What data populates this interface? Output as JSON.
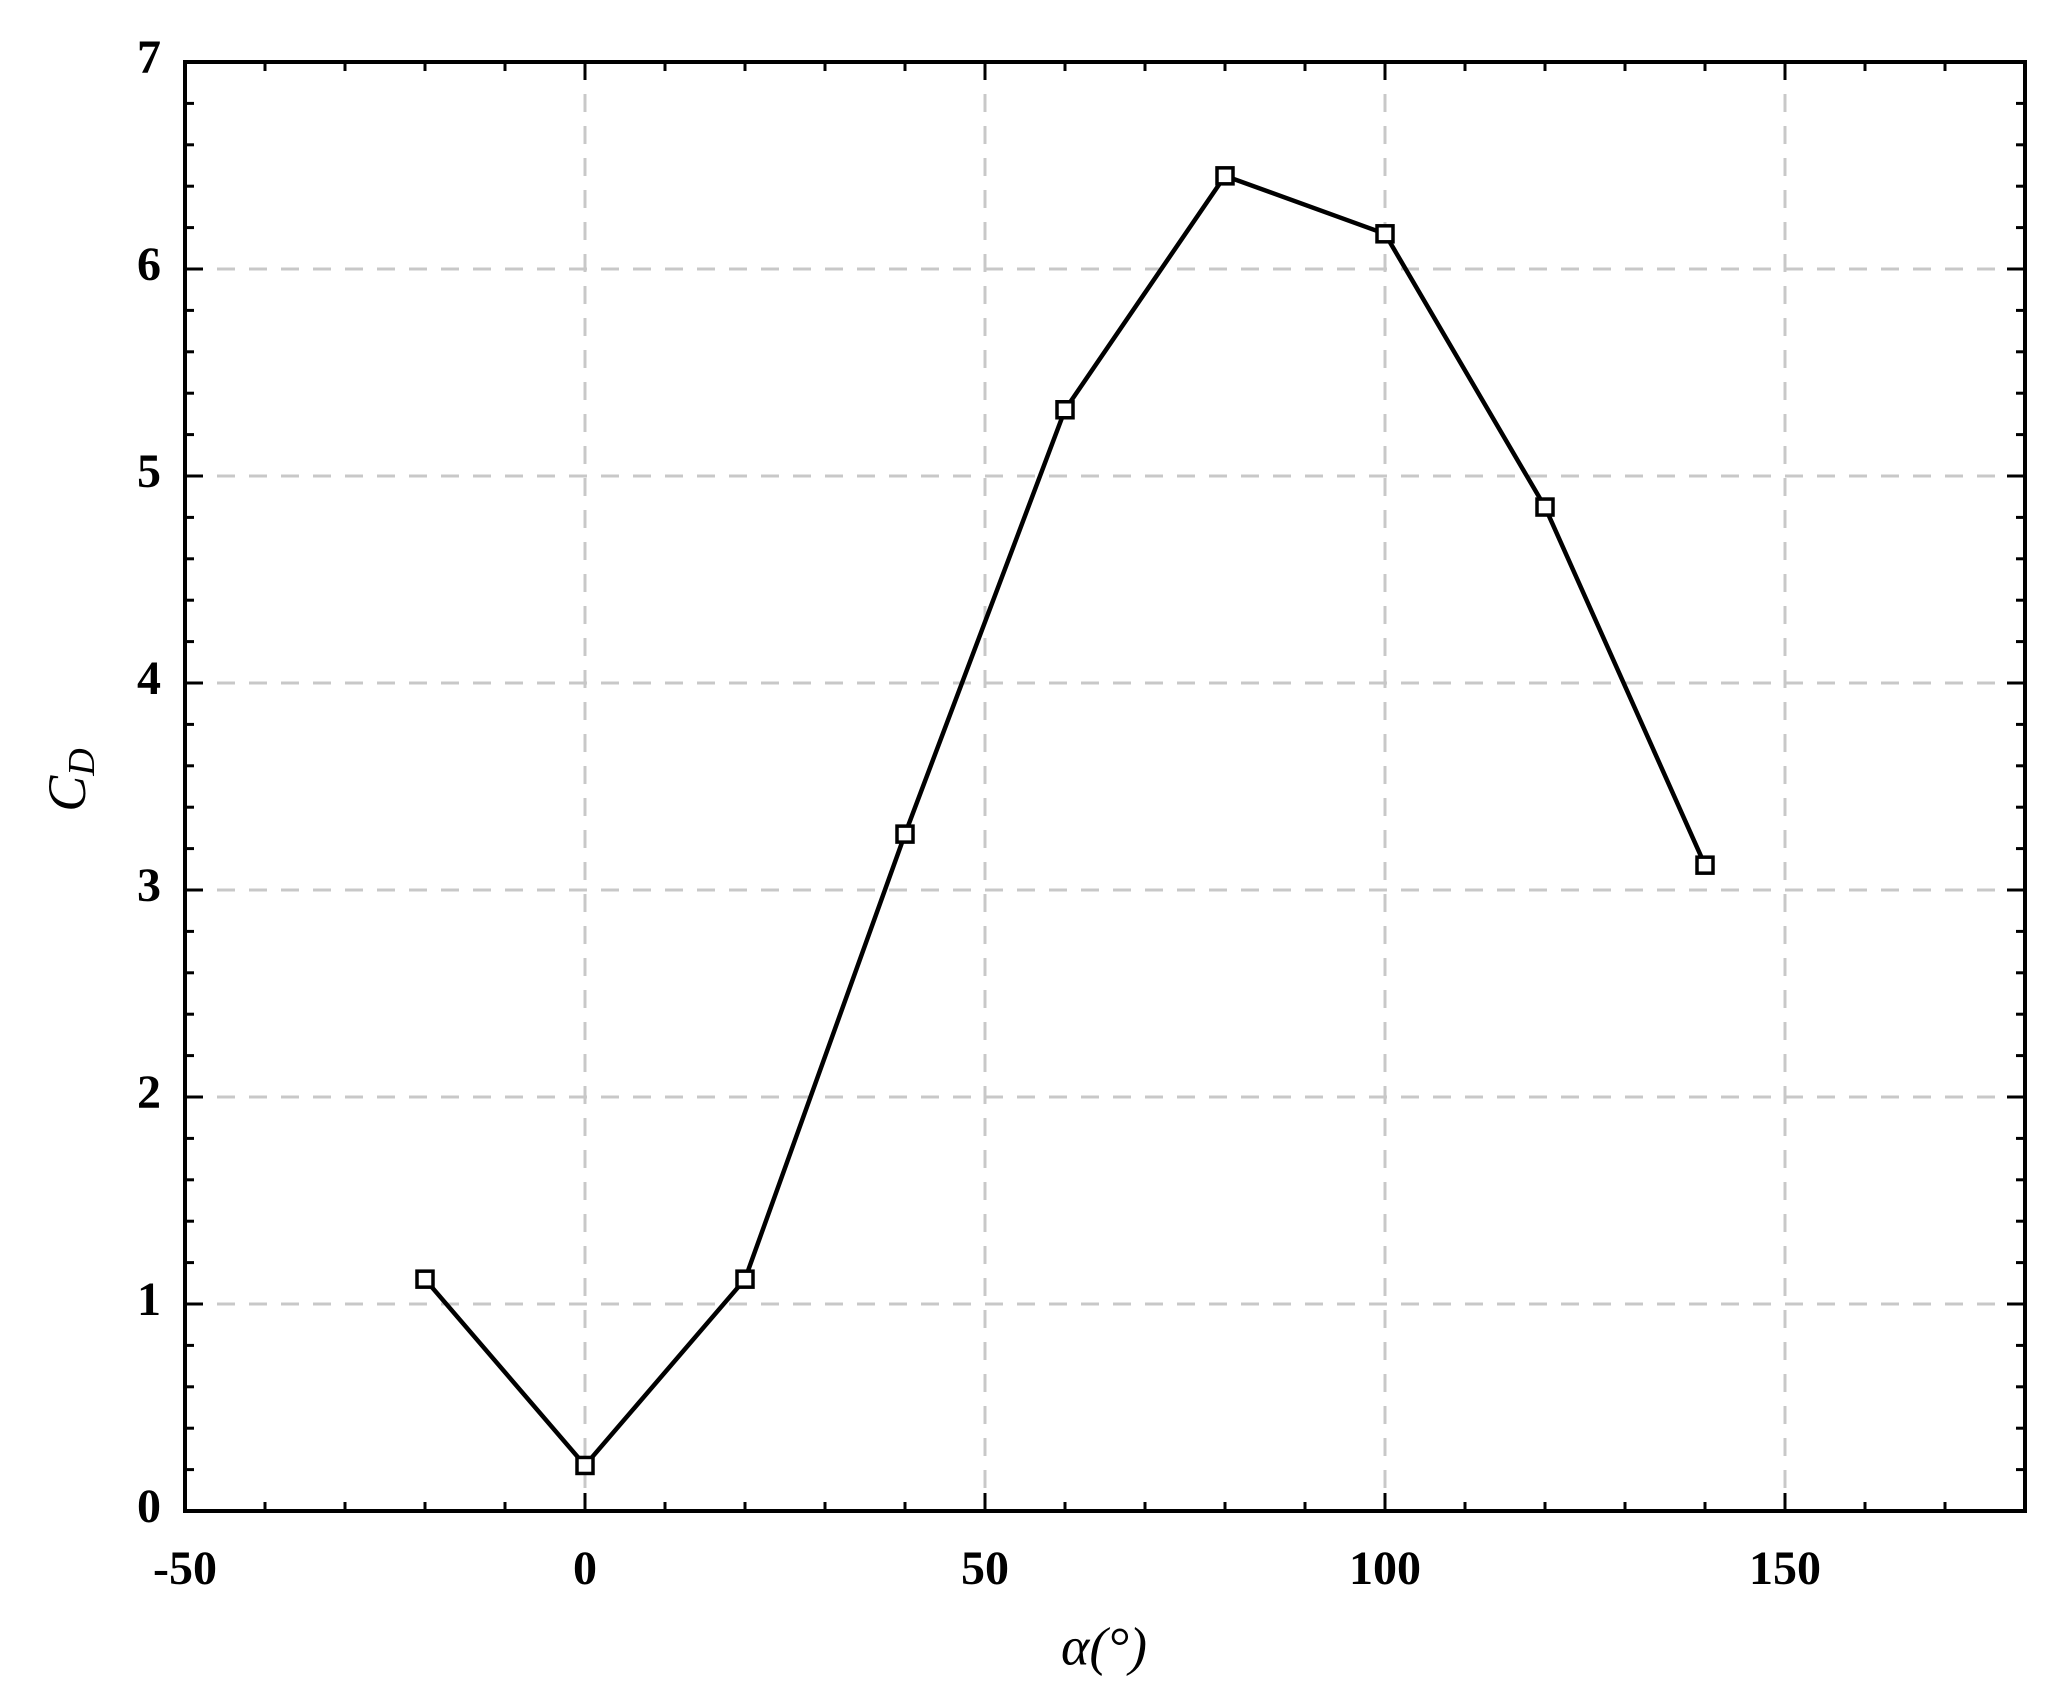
{
  "chart_data": {
    "type": "line",
    "xlabel": "α(°)",
    "ylabel": "C",
    "ylabel_subscript": "D",
    "x": [
      -20,
      0,
      20,
      40,
      60,
      80,
      100,
      120,
      140
    ],
    "series": [
      {
        "color": "#000000",
        "values": [
          1.12,
          0.22,
          1.12,
          3.27,
          5.32,
          6.45,
          6.17,
          4.85,
          3.12
        ]
      }
    ],
    "marker": "square",
    "xlim": [
      -50,
      180
    ],
    "xticks": [
      -50,
      0,
      50,
      100,
      150
    ],
    "ylim": [
      0,
      7
    ],
    "yticks": [
      0,
      1,
      2,
      3,
      4,
      5,
      6,
      7
    ],
    "x_minor_step": 10,
    "y_minor_step": 0.2,
    "grid": true
  }
}
